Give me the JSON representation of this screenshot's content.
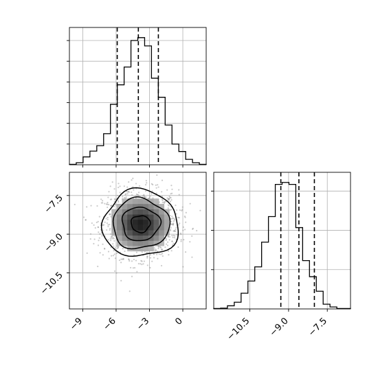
{
  "chart_data": {
    "type": "corner",
    "parameters": [
      {
        "ticks": [
          -9,
          -6,
          -3,
          0
        ],
        "tick_labels": [
          "−9",
          "−6",
          "−3",
          "0"
        ],
        "range": [
          -10.2,
          2.1
        ]
      },
      {
        "ticks": [
          -10.5,
          -9.0,
          -7.5
        ],
        "tick_labels": [
          "−10.5",
          "−9.0",
          "−7.5"
        ],
        "range": [
          -11.9,
          -6.6
        ]
      }
    ],
    "quantiles": {
      "param1": [
        -5.9,
        -4.0,
        -2.2
      ],
      "param2": [
        -9.3,
        -8.6,
        -8.0
      ]
    },
    "histogram_param1": {
      "bin_edges": [
        -10.2,
        -9.585,
        -8.97,
        -8.355,
        -7.74,
        -7.125,
        -6.51,
        -5.895,
        -5.28,
        -4.665,
        -4.05,
        -3.435,
        -2.82,
        -2.205,
        -1.59,
        -0.975,
        -0.36,
        0.255,
        0.87,
        1.485,
        2.1
      ],
      "counts": [
        1,
        5,
        19,
        33,
        46,
        75,
        146,
        193,
        236,
        300,
        307,
        287,
        209,
        163,
        96,
        50,
        32,
        13,
        5,
        1
      ]
    },
    "histogram_param2": {
      "bin_edges": [
        -11.9,
        -11.635,
        -11.37,
        -11.105,
        -10.84,
        -10.575,
        -10.31,
        -10.045,
        -9.78,
        -9.515,
        -9.25,
        -8.985,
        -8.72,
        -8.455,
        -8.19,
        -7.925,
        -7.66,
        -7.395,
        -7.13,
        -6.865,
        -6.6
      ],
      "counts": [
        1,
        2,
        8,
        17,
        40,
        71,
        107,
        170,
        235,
        317,
        322,
        317,
        207,
        123,
        82,
        45,
        12,
        5,
        1,
        1
      ]
    },
    "density_2d": {
      "center": [
        -3.8,
        -8.6
      ],
      "sigma": [
        1.7,
        0.65
      ],
      "contour_levels_sigma": [
        0.5,
        1.0,
        1.5,
        2.0
      ]
    },
    "grid": true,
    "colors": {
      "line": "#000000",
      "grid": "#b0b0b0",
      "points": "#8c8c8c"
    }
  }
}
